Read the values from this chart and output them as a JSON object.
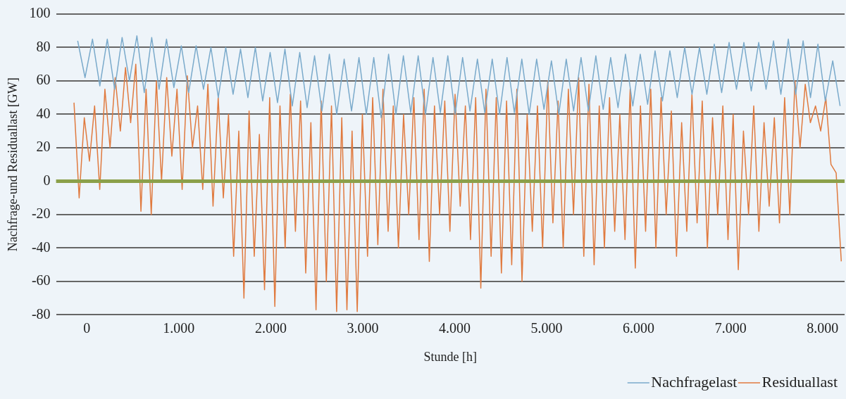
{
  "chart_data": {
    "type": "line",
    "xlabel": "Stunde [h]",
    "ylabel": "Nachfrage-und Residuallast [GW]",
    "xlim": [
      -335,
      8240
    ],
    "xticks": [
      0,
      {
        "value": 1000,
        "label": "1.000"
      },
      {
        "value": 2000,
        "label": "2.000"
      },
      {
        "value": 3000,
        "label": "3.000"
      },
      {
        "value": 4000,
        "label": "4.000"
      },
      {
        "value": 5000,
        "label": "5.000"
      },
      {
        "value": 6000,
        "label": "6.000"
      },
      {
        "value": 7000,
        "label": "7.000"
      },
      {
        "value": 8000,
        "label": "8.000"
      }
    ],
    "ylim": [
      -80,
      100
    ],
    "yticks": [
      -80,
      -60,
      -40,
      -20,
      0,
      20,
      40,
      60,
      80,
      100
    ],
    "grid": "y",
    "legend": "bottom right",
    "ref_lines": [
      {
        "axis": "y",
        "value": 0,
        "color": "#8ba04a"
      }
    ],
    "series": [
      {
        "name": "Nachfragelast",
        "color": "#7aaacb",
        "x": [
          -100,
          -20,
          61,
          141,
          222,
          302,
          383,
          463,
          544,
          624,
          705,
          785,
          866,
          946,
          1027,
          1107,
          1188,
          1268,
          1349,
          1429,
          1510,
          1590,
          1671,
          1751,
          1832,
          1912,
          1993,
          2073,
          2154,
          2234,
          2315,
          2395,
          2476,
          2556,
          2637,
          2717,
          2798,
          2878,
          2959,
          3039,
          3120,
          3200,
          3281,
          3361,
          3442,
          3522,
          3603,
          3683,
          3764,
          3844,
          3925,
          4005,
          4086,
          4166,
          4247,
          4327,
          4408,
          4488,
          4569,
          4649,
          4730,
          4810,
          4891,
          4971,
          5052,
          5132,
          5213,
          5293,
          5374,
          5454,
          5535,
          5615,
          5696,
          5776,
          5857,
          5937,
          6018,
          6098,
          6179,
          6259,
          6340,
          6420,
          6501,
          6581,
          6662,
          6742,
          6823,
          6903,
          6984,
          7064,
          7145,
          7225,
          7306,
          7386,
          7467,
          7547,
          7628,
          7708,
          7789,
          7869,
          7950,
          8030,
          8111,
          8191
        ],
        "values": [
          84,
          62,
          85,
          57,
          85,
          55,
          86,
          60,
          87,
          53,
          86,
          55,
          85,
          56,
          81,
          53,
          81,
          55,
          80,
          50,
          80,
          52,
          79,
          50,
          80,
          48,
          77,
          47,
          79,
          45,
          77,
          44,
          75,
          42,
          76,
          40,
          73,
          42,
          74,
          40,
          74,
          38,
          76,
          40,
          75,
          41,
          75,
          40,
          74,
          41,
          75,
          40,
          74,
          42,
          73,
          41,
          73,
          40,
          74,
          41,
          73,
          40,
          73,
          43,
          72,
          40,
          73,
          42,
          74,
          42,
          75,
          43,
          74,
          44,
          76,
          45,
          76,
          46,
          78,
          48,
          78,
          50,
          80,
          52,
          80,
          52,
          82,
          53,
          83,
          55,
          83,
          54,
          83,
          55,
          84,
          52,
          85,
          52,
          84,
          50,
          82,
          48,
          72,
          45
        ]
      },
      {
        "name": "Residuallast",
        "color": "#e07a3f",
        "x": [
          -140,
          -84,
          -28,
          28,
          84,
          140,
          196,
          252,
          308,
          364,
          420,
          476,
          532,
          588,
          644,
          700,
          756,
          812,
          868,
          924,
          980,
          1036,
          1092,
          1148,
          1204,
          1260,
          1316,
          1372,
          1428,
          1484,
          1540,
          1596,
          1652,
          1708,
          1764,
          1820,
          1876,
          1932,
          1988,
          2044,
          2100,
          2156,
          2212,
          2268,
          2324,
          2380,
          2436,
          2492,
          2548,
          2604,
          2660,
          2716,
          2772,
          2828,
          2884,
          2940,
          2996,
          3052,
          3108,
          3164,
          3220,
          3276,
          3332,
          3388,
          3444,
          3500,
          3556,
          3612,
          3668,
          3724,
          3780,
          3836,
          3892,
          3948,
          4004,
          4060,
          4116,
          4172,
          4228,
          4284,
          4340,
          4396,
          4452,
          4508,
          4564,
          4620,
          4676,
          4732,
          4788,
          4844,
          4900,
          4956,
          5012,
          5068,
          5124,
          5180,
          5236,
          5292,
          5348,
          5404,
          5460,
          5516,
          5572,
          5628,
          5684,
          5740,
          5796,
          5852,
          5908,
          5964,
          6020,
          6076,
          6132,
          6188,
          6244,
          6300,
          6356,
          6412,
          6468,
          6524,
          6580,
          6636,
          6692,
          6748,
          6804,
          6860,
          6916,
          6972,
          7028,
          7084,
          7140,
          7196,
          7252,
          7308,
          7364,
          7420,
          7476,
          7532,
          7588,
          7644,
          7700,
          7756,
          7812,
          7868,
          7924,
          7980,
          8036,
          8092,
          8148,
          8204
        ],
        "values": [
          47,
          -10,
          38,
          12,
          45,
          -5,
          55,
          20,
          62,
          30,
          68,
          35,
          70,
          -18,
          55,
          -20,
          60,
          0,
          62,
          15,
          55,
          -5,
          63,
          20,
          45,
          -5,
          58,
          -15,
          50,
          -10,
          40,
          -45,
          30,
          -70,
          42,
          -45,
          28,
          -65,
          50,
          -75,
          45,
          -40,
          52,
          -30,
          48,
          -55,
          35,
          -77,
          48,
          -60,
          45,
          -78,
          38,
          -77,
          30,
          -78,
          40,
          -45,
          50,
          -38,
          55,
          -30,
          45,
          -40,
          40,
          -20,
          50,
          -35,
          55,
          -48,
          45,
          -20,
          48,
          -30,
          52,
          -15,
          45,
          -35,
          50,
          -64,
          55,
          -45,
          50,
          -55,
          48,
          -50,
          55,
          -60,
          40,
          -30,
          45,
          -40,
          60,
          -25,
          48,
          -40,
          55,
          -20,
          62,
          -45,
          58,
          -50,
          45,
          -40,
          50,
          -30,
          40,
          -35,
          55,
          -52,
          45,
          -30,
          55,
          -40,
          50,
          -20,
          42,
          -45,
          35,
          -30,
          52,
          -25,
          48,
          -40,
          38,
          -20,
          45,
          -35,
          40,
          -53,
          30,
          -20,
          45,
          -30,
          35,
          -15,
          38,
          -25,
          50,
          -20,
          60,
          20,
          58,
          35,
          45,
          30,
          50,
          10,
          5,
          -48
        ]
      }
    ]
  }
}
